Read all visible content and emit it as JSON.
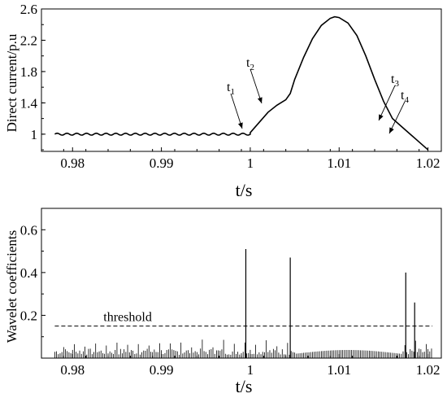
{
  "chart_data": [
    {
      "type": "line",
      "xlabel": "t/s",
      "ylabel": "Direct current/p.u",
      "xlim": [
        0.9765,
        1.0215
      ],
      "ylim": [
        0.78,
        2.6
      ],
      "x_ticks": [
        0.98,
        0.99,
        1,
        1.01,
        1.02
      ],
      "x_tick_labels": [
        "0.98",
        "0.99",
        "1",
        "1.01",
        "1.02"
      ],
      "y_ticks": [
        1,
        1.4,
        1.8,
        2.2,
        2.6
      ],
      "y_tick_labels": [
        "1",
        "1.4",
        "1.8",
        "2.2",
        "2.6"
      ],
      "grid": false,
      "series": [
        {
          "x": [
            0.978,
            0.98,
            0.985,
            0.99,
            0.995,
            0.9995,
            1.0,
            1.001,
            1.002,
            1.003,
            1.004,
            1.0045,
            1.005,
            1.006,
            1.007,
            1.008,
            1.009,
            1.0095,
            1.01,
            1.011,
            1.012,
            1.013,
            1.014,
            1.015,
            1.016,
            1.017,
            1.018,
            1.019,
            1.02
          ],
          "y": [
            1.0,
            1.0,
            1.0,
            1.0,
            1.0,
            1.0,
            1.02,
            1.15,
            1.28,
            1.37,
            1.44,
            1.52,
            1.7,
            1.98,
            2.22,
            2.39,
            2.48,
            2.5,
            2.49,
            2.42,
            2.26,
            2.0,
            1.7,
            1.42,
            1.2,
            1.1,
            1.0,
            0.9,
            0.8
          ],
          "ripple_amplitude": 0.012
        }
      ],
      "annotations": [
        {
          "label": "t",
          "sub": "1",
          "x": 1.0
        },
        {
          "label": "t",
          "sub": "2",
          "x": 1.003
        },
        {
          "label": "t",
          "sub": "3",
          "x": 1.017
        },
        {
          "label": "t",
          "sub": "4",
          "x": 1.018
        }
      ]
    },
    {
      "type": "bar",
      "xlabel": "t/s",
      "ylabel": "Wavelet coefficients",
      "xlim": [
        0.9765,
        1.0215
      ],
      "ylim": [
        0,
        0.7
      ],
      "x_ticks": [
        0.98,
        0.99,
        1,
        1.01,
        1.02
      ],
      "x_tick_labels": [
        "0.98",
        "0.99",
        "1",
        "1.01",
        "1.02"
      ],
      "y_ticks": [
        0.2,
        0.4,
        0.6
      ],
      "y_tick_labels": [
        "0.2",
        "0.4",
        "0.6"
      ],
      "grid": false,
      "threshold": {
        "label": "threshold",
        "value": 0.15
      },
      "spikes": [
        {
          "x": 0.9995,
          "value": 0.51
        },
        {
          "x": 1.0045,
          "value": 0.47
        },
        {
          "x": 1.0175,
          "value": 0.4
        },
        {
          "x": 1.0185,
          "value": 0.26
        }
      ],
      "noise_range": [
        0.978,
        1.0205
      ],
      "noise_base": 0.03,
      "noise_peak": 0.09
    }
  ]
}
